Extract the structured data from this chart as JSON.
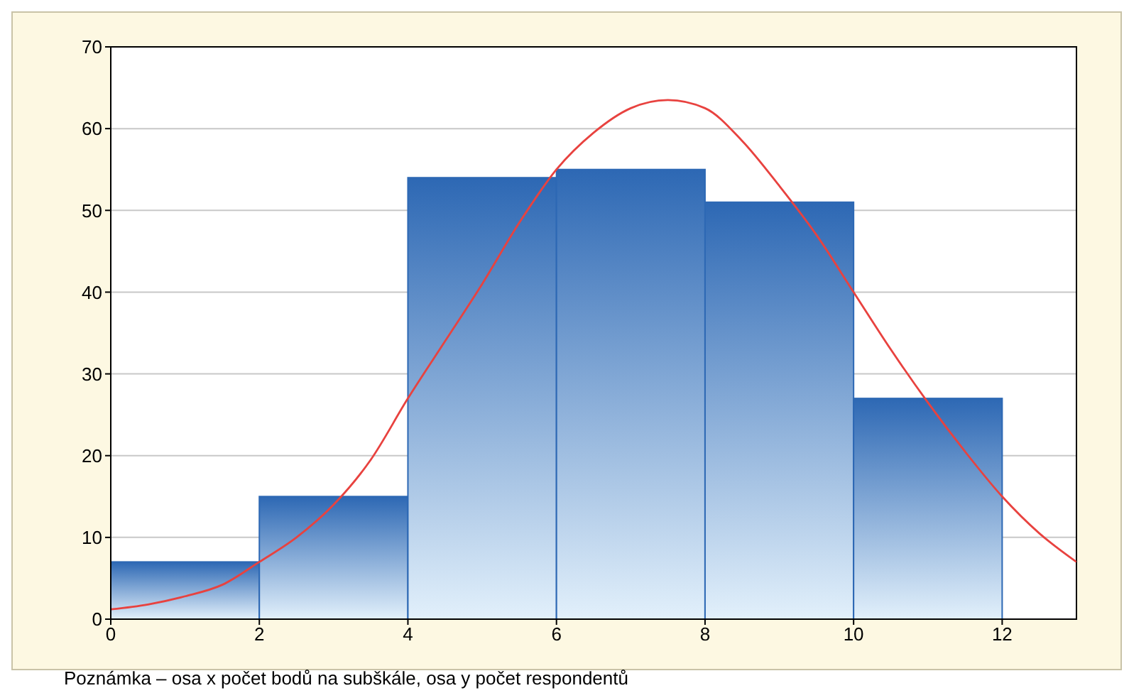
{
  "chart_data": {
    "type": "histogram",
    "bins": [
      0,
      2,
      4,
      6,
      8,
      10,
      12
    ],
    "values": [
      7,
      15,
      54,
      55,
      51,
      27
    ],
    "color": "#2d68b4",
    "series": [
      {
        "type": "line",
        "color": "#e8423f",
        "x": [
          0,
          0.5,
          1,
          1.5,
          2,
          2.5,
          3,
          3.5,
          4,
          4.5,
          5,
          5.5,
          6,
          6.5,
          7,
          7.5,
          8,
          8.5,
          9,
          9.5,
          10,
          10.5,
          11,
          11.5,
          12,
          12.5,
          13
        ],
        "values": [
          1.2,
          1.8,
          2.8,
          4.2,
          7,
          10,
          14,
          19.5,
          27,
          34,
          41,
          48.5,
          55,
          59.5,
          62.5,
          63.5,
          62.5,
          58.5,
          53,
          47,
          40,
          33,
          26.5,
          20.5,
          15,
          10.5,
          7
        ]
      }
    ],
    "xlim": [
      0,
      13
    ],
    "xticks": [
      0,
      2,
      4,
      6,
      8,
      10,
      12
    ],
    "ylim": [
      0,
      70
    ],
    "yticks": [
      0,
      10,
      20,
      30,
      40,
      50,
      60,
      70
    ],
    "grid": "y",
    "marker": "none",
    "line_style": "solid",
    "annotations": [
      "Poznámka – osa x počet bodů na subškále, osa y počet respondentů"
    ]
  }
}
